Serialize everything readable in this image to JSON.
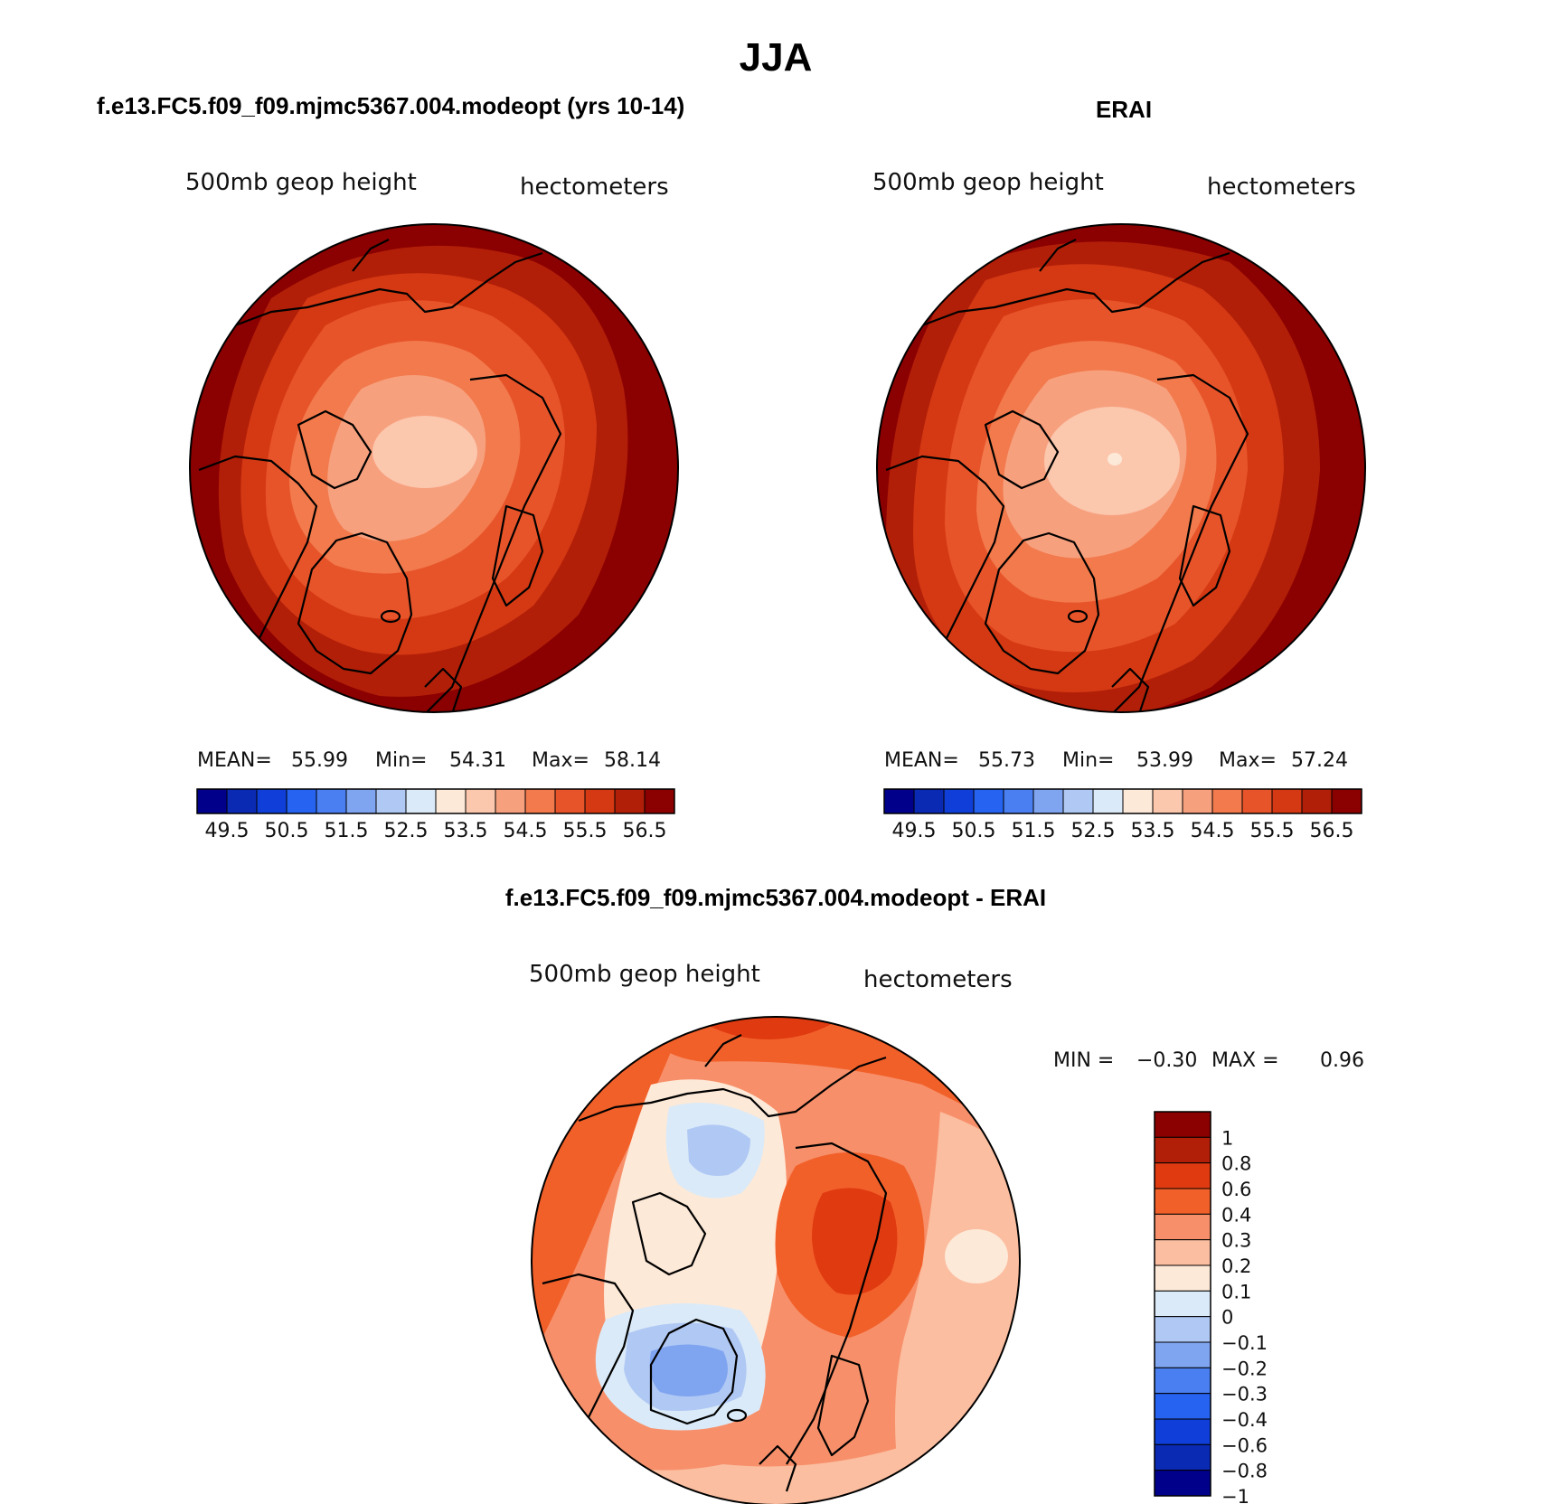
{
  "figure": {
    "title": "JJA"
  },
  "panels": [
    {
      "id": "model",
      "title": "f.e13.FC5.f09_f09.mjmc5367.004.modeopt (yrs 10-14)",
      "left_label": "500mb geop height",
      "right_label": "hectometers",
      "stats": {
        "mean_label": "MEAN=",
        "mean": "55.99",
        "min_label": "Min=",
        "min": "54.31",
        "max_label": "Max=",
        "max": "58.14"
      },
      "colorbar": {
        "colors": [
          "#00008b",
          "#0a2ab4",
          "#0f3fd8",
          "#2563f0",
          "#4a7ff2",
          "#7fa4f0",
          "#b0c8f4",
          "#daeaf8",
          "#fde9d8",
          "#fbc7ad",
          "#f7a07e",
          "#f27a4c",
          "#e8542a",
          "#d53913",
          "#b21f08",
          "#8b0000"
        ],
        "tick_labels": [
          "49.5",
          "50.5",
          "51.5",
          "52.5",
          "53.5",
          "54.5",
          "55.5",
          "56.5"
        ]
      },
      "field": {
        "levels": [
          {
            "value": 56.5,
            "color": "#8b0000"
          },
          {
            "value": 56.0,
            "color": "#b21f08"
          },
          {
            "value": 55.5,
            "color": "#d53913"
          },
          {
            "value": 55.0,
            "color": "#e8542a"
          },
          {
            "value": 54.5,
            "color": "#f27a4c"
          },
          {
            "value": 54.0,
            "color": "#f7a07e"
          },
          {
            "value": 53.5,
            "color": "#fbc7ad"
          }
        ]
      }
    },
    {
      "id": "erai",
      "title": "ERAI",
      "left_label": "500mb geop height",
      "right_label": "hectometers",
      "stats": {
        "mean_label": "MEAN=",
        "mean": "55.73",
        "min_label": "Min=",
        "min": "53.99",
        "max_label": "Max=",
        "max": "57.24"
      },
      "colorbar": {
        "colors": [
          "#00008b",
          "#0a2ab4",
          "#0f3fd8",
          "#2563f0",
          "#4a7ff2",
          "#7fa4f0",
          "#b0c8f4",
          "#daeaf8",
          "#fde9d8",
          "#fbc7ad",
          "#f7a07e",
          "#f27a4c",
          "#e8542a",
          "#d53913",
          "#b21f08",
          "#8b0000"
        ],
        "tick_labels": [
          "49.5",
          "50.5",
          "51.5",
          "52.5",
          "53.5",
          "54.5",
          "55.5",
          "56.5"
        ]
      }
    },
    {
      "id": "diff",
      "title": "f.e13.FC5.f09_f09.mjmc5367.004.modeopt - ERAI",
      "left_label": "500mb geop height",
      "right_label": "hectometers",
      "stats": {
        "min_label": "MIN =",
        "min": "−0.30",
        "max_label": "MAX =",
        "max": "0.96"
      },
      "colorbar": {
        "colors_top_to_bottom": [
          "#8b0000",
          "#b21f08",
          "#e03a10",
          "#f2602a",
          "#f7906a",
          "#fbbea0",
          "#fde9d8",
          "#daeaf8",
          "#b0c8f4",
          "#7fa4f0",
          "#4a7ff2",
          "#2563f0",
          "#0f3fd8",
          "#0a2ab4",
          "#00008b"
        ],
        "tick_labels": [
          "1",
          "0.8",
          "0.6",
          "0.4",
          "0.3",
          "0.2",
          "0.1",
          "0",
          "−0.1",
          "−0.2",
          "−0.3",
          "−0.4",
          "−0.6",
          "−0.8",
          "−1"
        ]
      }
    }
  ]
}
